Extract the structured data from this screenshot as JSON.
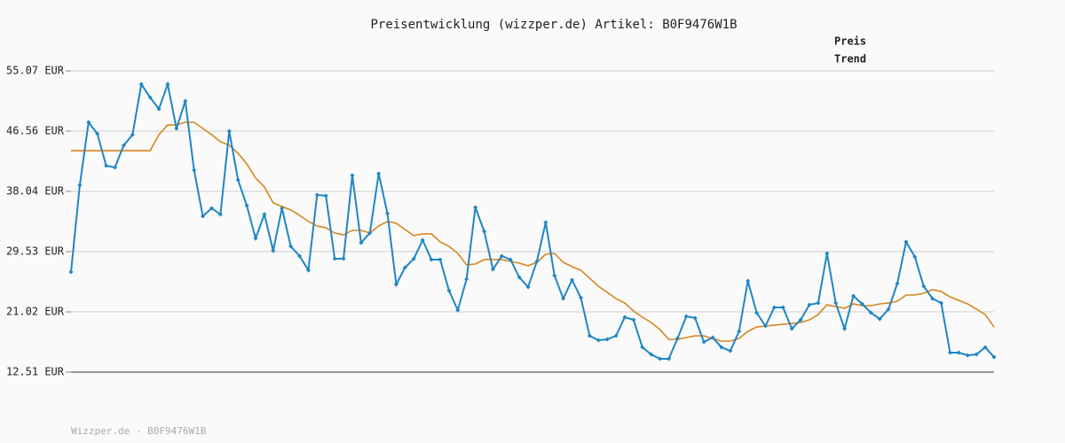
{
  "chart_data": {
    "type": "line",
    "title": "Preisentwicklung (wizzper.de) Artikel: B0F9476W1B",
    "footer": "Wizzper.de - B0F9476W1B",
    "categories": [
      null,
      null,
      null,
      null,
      null,
      null,
      null,
      null,
      null,
      null,
      null,
      null,
      null,
      null,
      null,
      null,
      null,
      null,
      null,
      null,
      null,
      null,
      null,
      null,
      null,
      null,
      null,
      null,
      null,
      null,
      null,
      null,
      null,
      null,
      null,
      null,
      null,
      null,
      null,
      null,
      null,
      null,
      null,
      null,
      null,
      null,
      null,
      null,
      null,
      null,
      null,
      null,
      null,
      null,
      null,
      null,
      null,
      null,
      null,
      null,
      null,
      null,
      null,
      null,
      null,
      null,
      null,
      null,
      null,
      null,
      null,
      null,
      null,
      null,
      null,
      null,
      null,
      null,
      null,
      null,
      null,
      null,
      null,
      null,
      null,
      null,
      null,
      null,
      null,
      null,
      null,
      null,
      null,
      null,
      null,
      null,
      null,
      null,
      null,
      null,
      null,
      null,
      null,
      null,
      null,
      null
    ],
    "ylim": [
      12.51,
      55.07
    ],
    "yticks": [
      {
        "value": 12.51,
        "label": "12.51 EUR"
      },
      {
        "value": 21.02,
        "label": "21.02 EUR"
      },
      {
        "value": 29.53,
        "label": "29.53 EUR"
      },
      {
        "value": 38.04,
        "label": "38.04 EUR"
      },
      {
        "value": 46.56,
        "label": "46.56 EUR"
      },
      {
        "value": 55.07,
        "label": "55.07 EUR"
      }
    ],
    "grid": true,
    "legend": "top-right",
    "series": [
      {
        "name": "Preis",
        "color": "#1f86c4",
        "markers": true,
        "values": [
          26.66,
          38.92,
          47.81,
          46.18,
          41.68,
          41.43,
          44.56,
          46.06,
          53.19,
          51.31,
          49.69,
          53.19,
          46.93,
          50.81,
          41.05,
          34.54,
          35.67,
          34.79,
          46.56,
          39.67,
          36.04,
          31.41,
          34.79,
          29.66,
          35.67,
          30.28,
          28.91,
          26.91,
          37.55,
          37.42,
          28.53,
          28.53,
          40.3,
          30.79,
          32.16,
          40.55,
          34.92,
          24.9,
          27.28,
          28.53,
          31.16,
          28.41,
          28.41,
          24.03,
          21.27,
          25.65,
          35.79,
          32.41,
          27.03,
          28.91,
          28.41,
          25.9,
          24.53,
          28.16,
          33.66,
          26.15,
          22.9,
          25.53,
          23.02,
          17.64,
          17.02,
          17.14,
          17.64,
          20.27,
          19.89,
          16.01,
          15.01,
          14.39,
          14.39,
          17.27,
          20.4,
          20.15,
          16.77,
          17.39,
          16.01,
          15.51,
          18.27,
          25.4,
          20.9,
          19.02,
          21.65,
          21.65,
          18.64,
          19.89,
          22.02,
          22.27,
          29.28,
          22.27,
          18.64,
          23.28,
          22.15,
          20.9,
          20.02,
          21.4,
          25.03,
          30.91,
          28.78,
          24.65,
          22.9,
          22.27,
          15.26,
          15.26,
          14.89,
          15.01,
          16.01,
          14.64
        ]
      },
      {
        "name": "Trend",
        "color": "#d8861c",
        "markers": false,
        "values": [
          43.8,
          43.8,
          43.8,
          43.8,
          43.8,
          43.8,
          43.8,
          43.8,
          43.8,
          43.8,
          46.06,
          47.43,
          47.43,
          47.81,
          47.81,
          46.93,
          46.06,
          45.06,
          44.56,
          43.43,
          41.93,
          39.92,
          38.67,
          36.42,
          35.92,
          35.42,
          34.67,
          33.79,
          33.16,
          32.91,
          32.16,
          31.91,
          32.54,
          32.54,
          32.16,
          33.16,
          33.79,
          33.54,
          32.66,
          31.79,
          32.04,
          32.04,
          30.91,
          30.28,
          29.28,
          27.66,
          27.78,
          28.41,
          28.41,
          28.41,
          28.16,
          27.91,
          27.53,
          28.03,
          29.16,
          29.28,
          28.03,
          27.41,
          26.91,
          25.78,
          24.65,
          23.78,
          22.9,
          22.27,
          21.15,
          20.27,
          19.52,
          18.52,
          17.14,
          17.14,
          17.39,
          17.64,
          17.64,
          17.27,
          16.89,
          16.89,
          17.27,
          18.27,
          18.89,
          19.02,
          19.14,
          19.27,
          19.39,
          19.52,
          19.89,
          20.65,
          22.02,
          21.77,
          21.52,
          22.15,
          21.9,
          21.9,
          22.15,
          22.27,
          22.52,
          23.4,
          23.4,
          23.65,
          24.15,
          23.9,
          23.15,
          22.65,
          22.15,
          21.4,
          20.65,
          18.89
        ]
      }
    ]
  }
}
